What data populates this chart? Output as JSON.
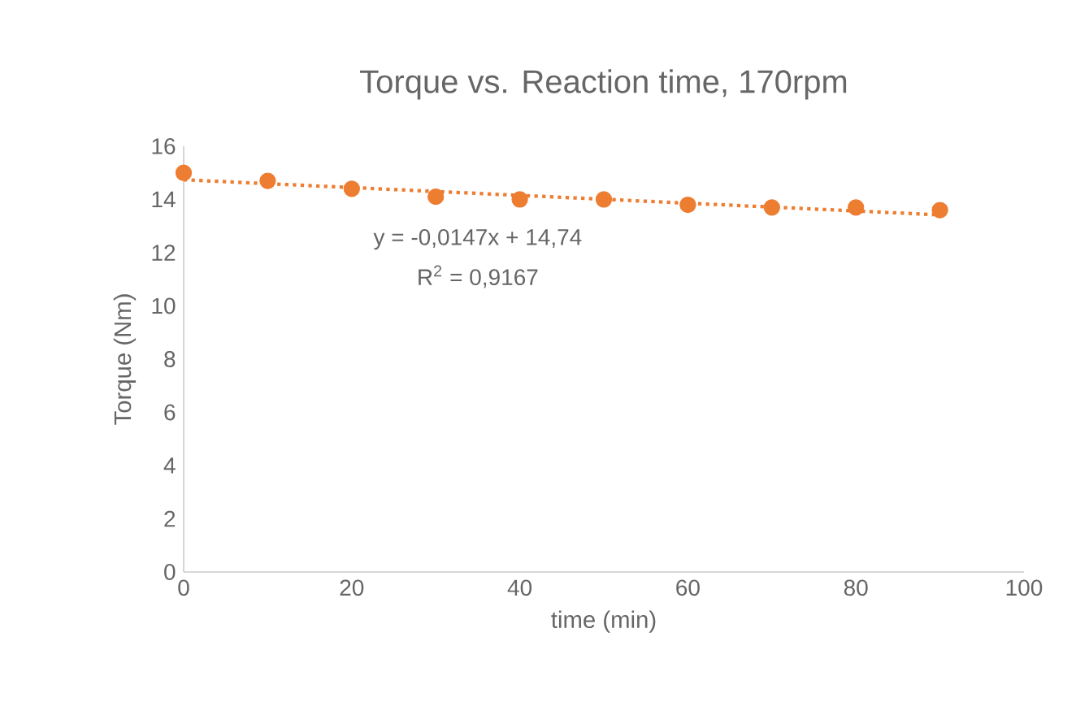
{
  "chart_data": {
    "type": "scatter",
    "title": "Torque vs. Reaction time, 170rpm",
    "xlabel": "time (min)",
    "ylabel": "Torque (Nm)",
    "xlim": [
      0,
      100
    ],
    "xticks": [
      0,
      20,
      40,
      60,
      80,
      100
    ],
    "ylim": [
      0,
      16
    ],
    "yticks": [
      0,
      2,
      4,
      6,
      8,
      10,
      12,
      14,
      16
    ],
    "grid": false,
    "series": [
      {
        "color": "#ed7d31",
        "x": [
          0,
          10,
          20,
          30,
          40,
          50,
          60,
          70,
          80,
          90
        ],
        "values": [
          15.0,
          14.7,
          14.4,
          14.1,
          14.0,
          14.0,
          13.8,
          13.7,
          13.7,
          13.6
        ]
      },
      {
        "type": "line",
        "marker": "none",
        "color": "#ed7d31",
        "line_style": "dotted",
        "x": [
          0,
          90
        ],
        "values": [
          14.74,
          13.42
        ]
      }
    ],
    "annotations": [
      "y = -0,0147x + 14,74",
      "R$^{2}$ = 0,9167"
    ]
  }
}
